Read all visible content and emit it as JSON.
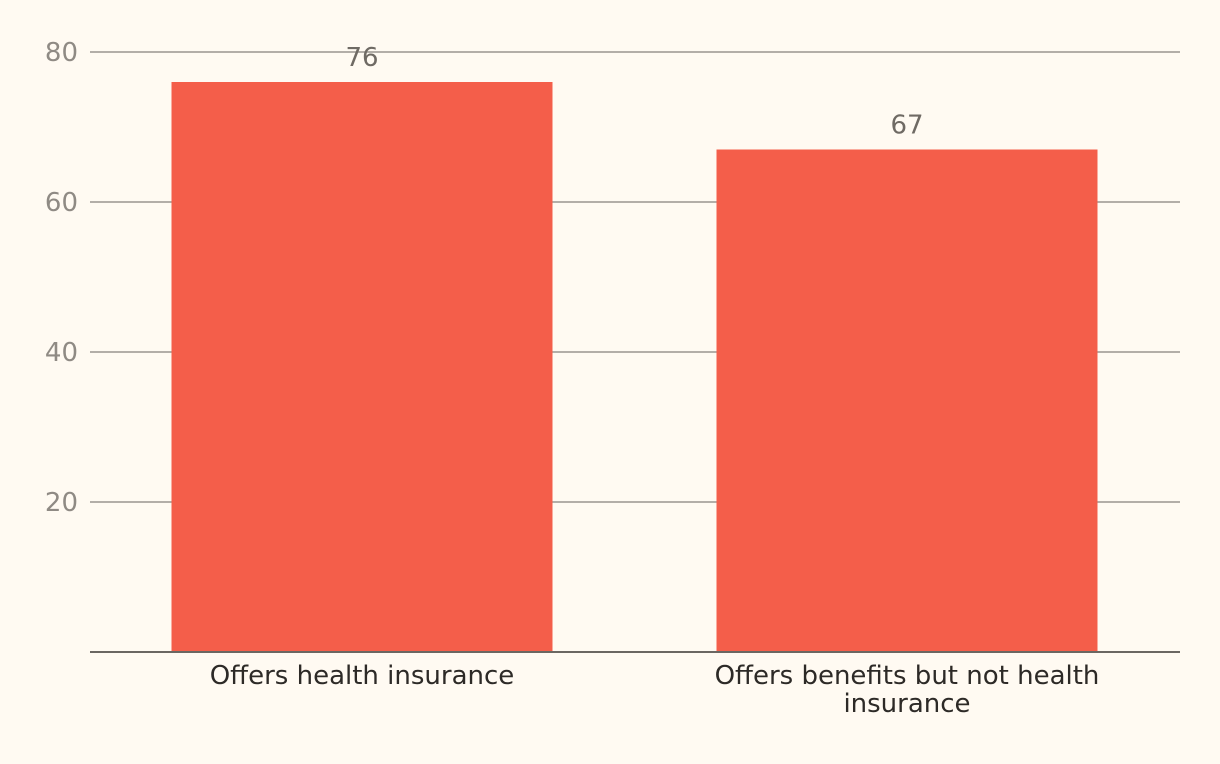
{
  "chart_data": {
    "type": "bar",
    "title": "",
    "xlabel": "",
    "ylabel": "",
    "categories": [
      [
        "Offers health insurance"
      ],
      [
        "Offers benefits but not health",
        "insurance"
      ]
    ],
    "values": [
      76,
      67
    ],
    "value_labels": [
      "76",
      "67"
    ],
    "yticks": [
      20,
      40,
      60,
      80
    ],
    "ytick_labels": [
      "20",
      "40",
      "60",
      "80"
    ],
    "ylim": [
      0,
      80
    ],
    "grid": true,
    "legend": "none",
    "bar_color": "#f45e4a",
    "background_color": "#fffaf2"
  }
}
